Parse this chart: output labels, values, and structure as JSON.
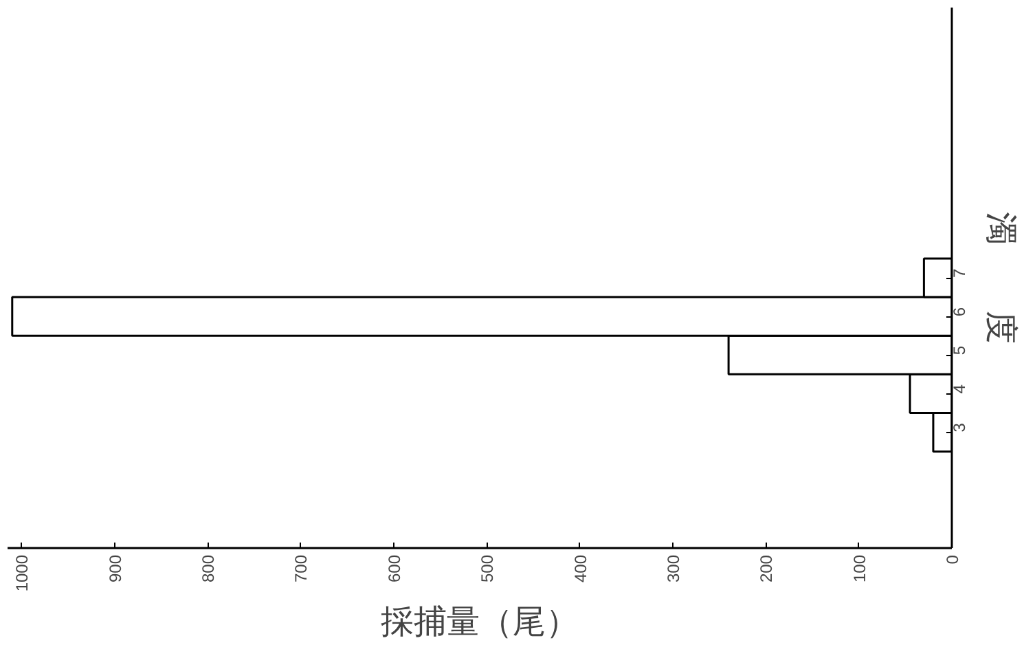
{
  "chart_data": {
    "type": "histogram",
    "orientation": "horizontal",
    "xlabel": "採捕量（尾）",
    "ylabel": "濁　　度",
    "bins": [
      2.5,
      3.5,
      4.5,
      5.5,
      6.5,
      7.5
    ],
    "values": [
      20,
      45,
      240,
      1010,
      30
    ],
    "color": "#000000",
    "xlim": [
      1015,
      0
    ],
    "xticks": [
      0,
      100,
      200,
      300,
      400,
      500,
      600,
      700,
      800,
      900,
      1000
    ],
    "ylim": [
      0,
      14
    ],
    "yticks": [
      3,
      4,
      5,
      6,
      7
    ],
    "grid": false
  }
}
